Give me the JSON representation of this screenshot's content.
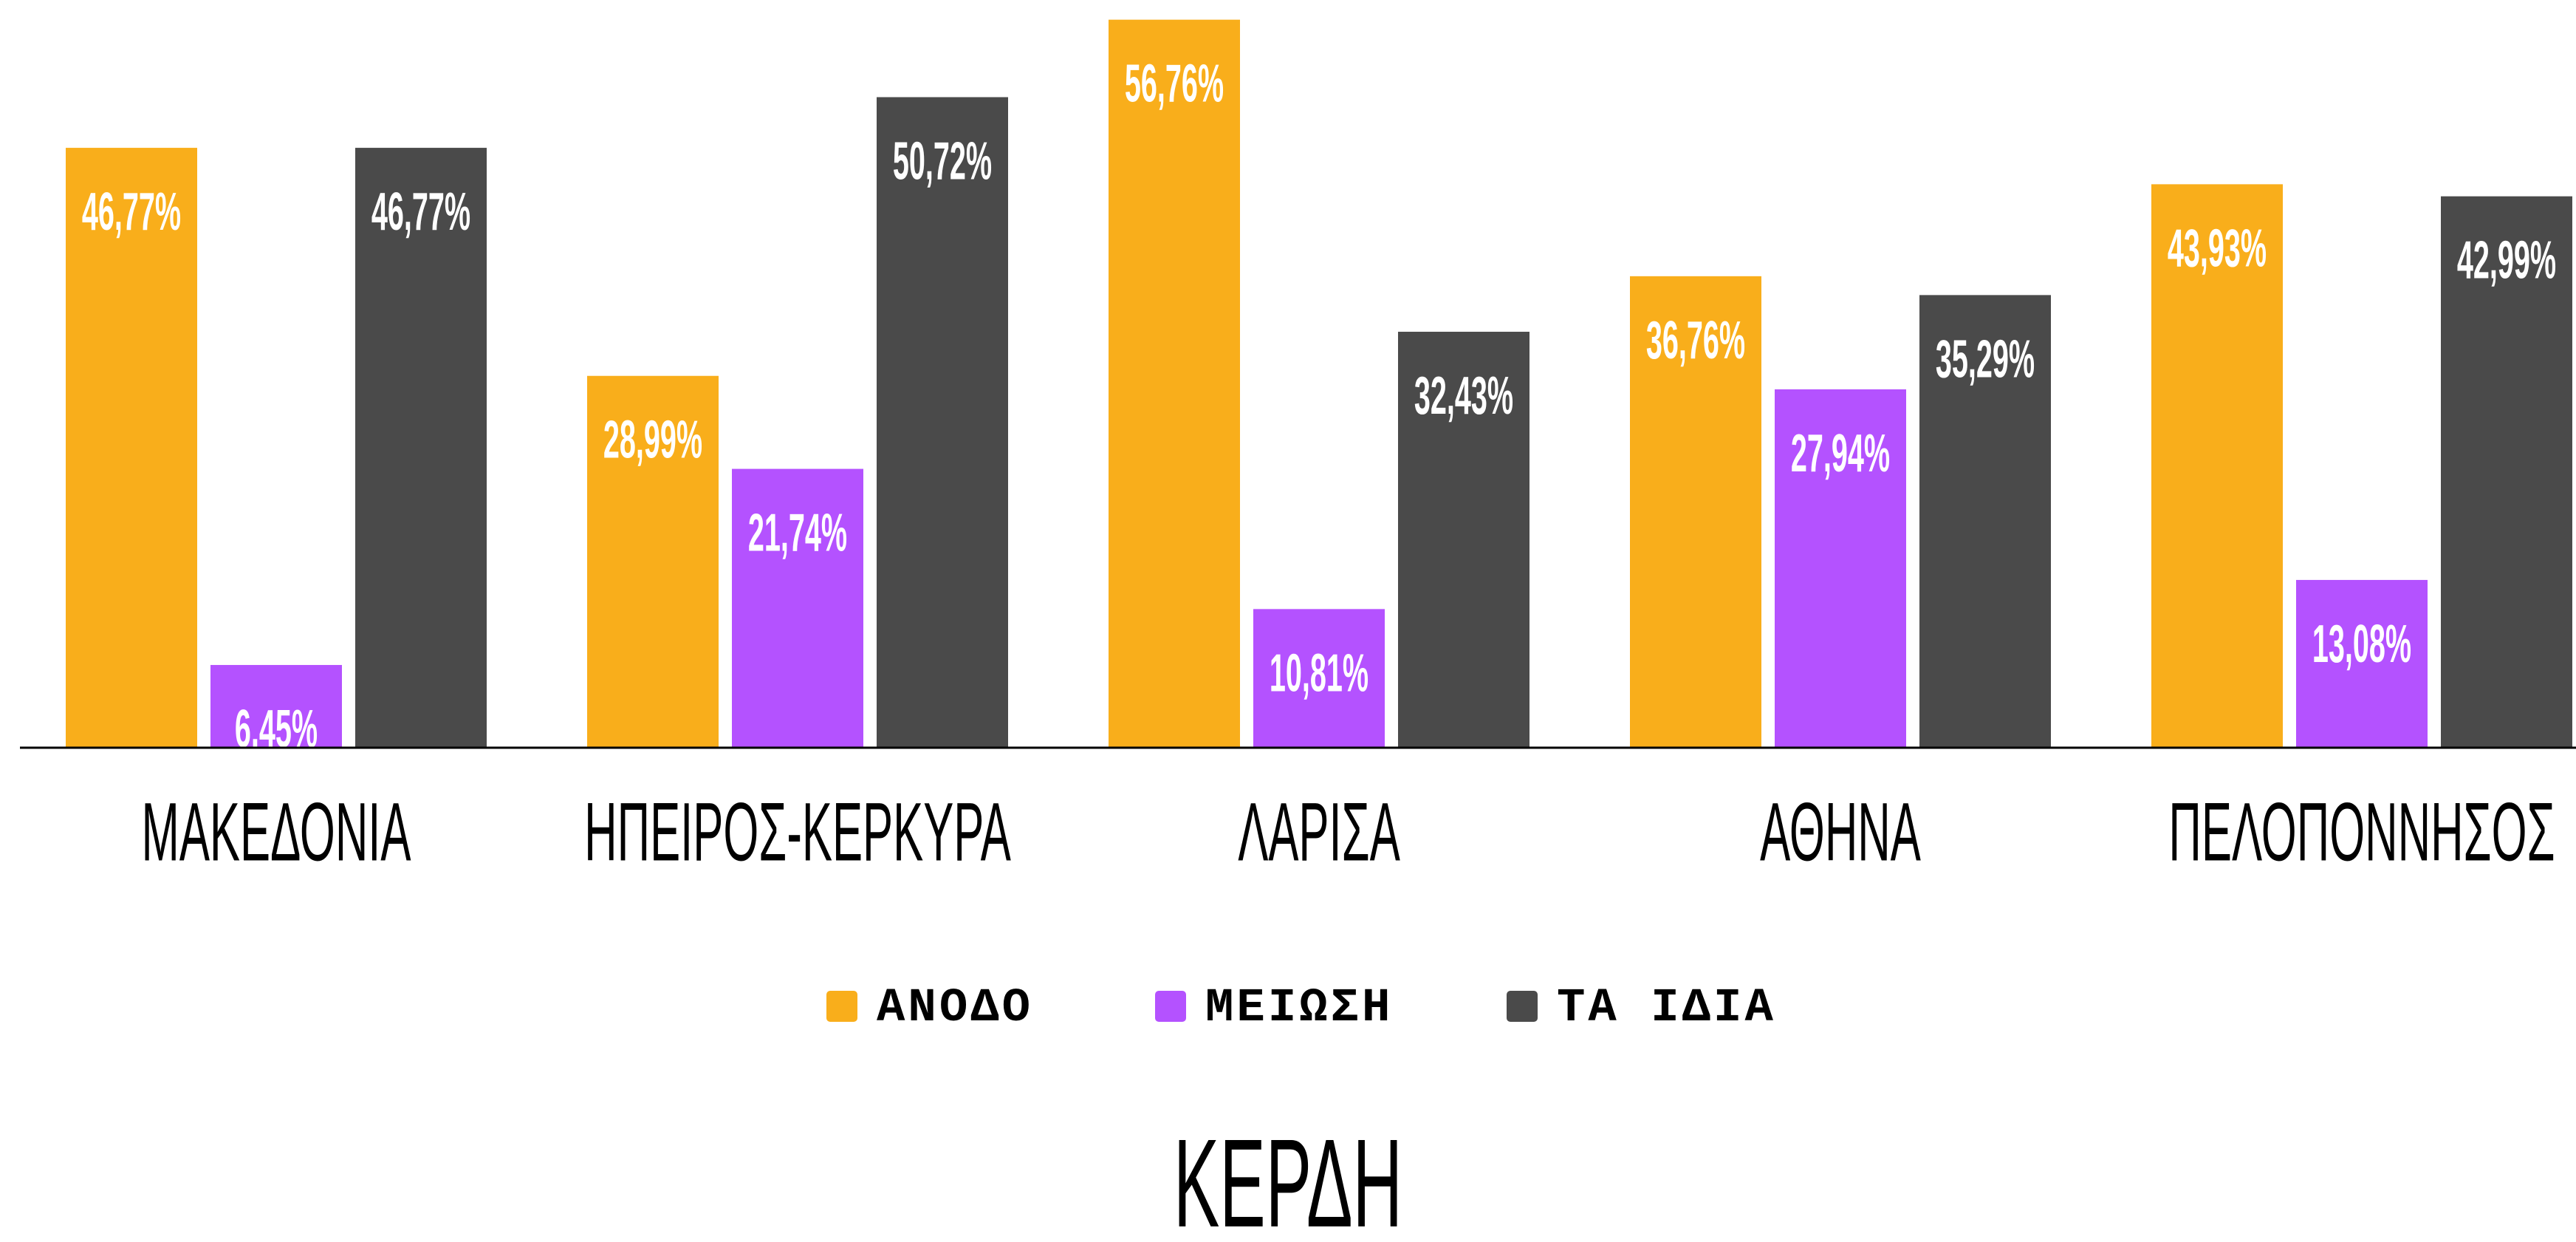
{
  "chart_data": {
    "type": "bar",
    "title": "ΚΕΡΔΗ",
    "categories": [
      "ΜΑΚΕΔΟΝΙΑ",
      "ΗΠΕΙΡΟΣ-ΚΕΡΚΥΡΑ",
      "ΛΑΡΙΣΑ",
      "ΑΘΗΝΑ",
      "ΠΕΛΟΠΟΝΝΗΣΟΣ"
    ],
    "series": [
      {
        "name": "ΑΝΟΔΟ",
        "color": "#f9ae1b",
        "values": [
          46.77,
          28.99,
          56.76,
          36.76,
          43.93
        ],
        "value_labels": [
          "46,77%",
          "28,99%",
          "56,76%",
          "36,76%",
          "43,93%"
        ]
      },
      {
        "name": "ΜΕΙΩΣΗ",
        "color": "#b452ff",
        "values": [
          6.45,
          21.74,
          10.81,
          27.94,
          13.08
        ],
        "value_labels": [
          "6,45%",
          "21,74%",
          "10,81%",
          "27,94%",
          "13,08%"
        ]
      },
      {
        "name": "ΤΑ ΙΔΙΑ",
        "color": "#4a4a4a",
        "values": [
          46.77,
          50.72,
          32.43,
          35.29,
          42.99
        ],
        "value_labels": [
          "46,77%",
          "50,72%",
          "32,43%",
          "35,29%",
          "42,99%"
        ]
      }
    ],
    "legend": "bottom"
  }
}
